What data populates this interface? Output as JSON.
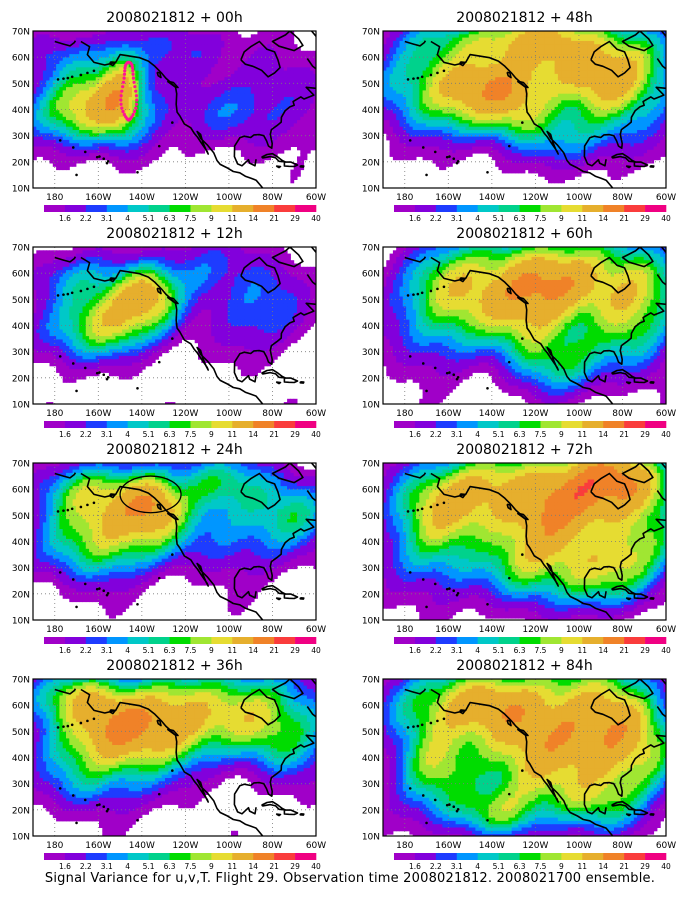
{
  "caption": "Signal Variance for u,v,T. Flight 29. Observation time 2008021812. 2008021700 ensemble.",
  "lat_labels": [
    "10N",
    "20N",
    "30N",
    "40N",
    "50N",
    "60N",
    "70N"
  ],
  "lon_labels": [
    "180",
    "160W",
    "140W",
    "120W",
    "100W",
    "80W",
    "60W"
  ],
  "colorbar": {
    "labels": [
      "1.6",
      "2.2",
      "3.1",
      "4",
      "5.1",
      "6.3",
      "7.5",
      "9",
      "11",
      "14",
      "21",
      "29",
      "40"
    ],
    "colors": [
      "#a000c8",
      "#8200dc",
      "#1e3cff",
      "#0096ff",
      "#00c8c8",
      "#00d28c",
      "#00dc00",
      "#a0e632",
      "#e6dc32",
      "#e6af2d",
      "#f08228",
      "#fa3c3c",
      "#f00082"
    ]
  },
  "chart_data": [
    {
      "type": "heatmap",
      "title": "2008021812 + 00h",
      "blobs": [
        {
          "lon": -160,
          "lat": 42,
          "slon": 16,
          "slat": 9,
          "a": 11
        },
        {
          "lon": -150,
          "lat": 47,
          "slon": 6,
          "slat": 10,
          "a": 9
        },
        {
          "lon": -170,
          "lat": 60,
          "slon": 15,
          "slat": 6,
          "a": 2
        },
        {
          "lon": -118,
          "lat": 63,
          "slon": 18,
          "slat": 7,
          "a": 1.8
        },
        {
          "lon": -100,
          "lat": 38,
          "slon": 16,
          "slat": 8,
          "a": 1.8
        },
        {
          "lon": -75,
          "lat": 45,
          "slon": 14,
          "slat": 10,
          "a": 1.7
        },
        {
          "lon": -178,
          "lat": 38,
          "slon": 14,
          "slat": 6,
          "a": 2.5
        }
      ],
      "marker": {
        "type": "dotted-loop",
        "lon": -146,
        "lat": 47,
        "rlon": 4,
        "rlat": 11
      }
    },
    {
      "type": "heatmap",
      "title": "2008021812 + 48h",
      "blobs": [
        {
          "lon": -150,
          "lat": 48,
          "slon": 16,
          "slat": 10,
          "a": 14
        },
        {
          "lon": -128,
          "lat": 45,
          "slon": 10,
          "slat": 9,
          "a": 10
        },
        {
          "lon": -105,
          "lat": 58,
          "slon": 20,
          "slat": 10,
          "a": 12
        },
        {
          "lon": -80,
          "lat": 52,
          "slon": 15,
          "slat": 10,
          "a": 10
        },
        {
          "lon": -100,
          "lat": 32,
          "slon": 18,
          "slat": 8,
          "a": 4
        },
        {
          "lon": -175,
          "lat": 50,
          "slon": 12,
          "slat": 10,
          "a": 4
        },
        {
          "lon": -130,
          "lat": 67,
          "slon": 25,
          "slat": 5,
          "a": 8
        }
      ]
    },
    {
      "type": "heatmap",
      "title": "2008021812 + 12h",
      "blobs": [
        {
          "lon": -150,
          "lat": 45,
          "slon": 14,
          "slat": 8,
          "a": 13
        },
        {
          "lon": -138,
          "lat": 52,
          "slon": 8,
          "slat": 6,
          "a": 9
        },
        {
          "lon": -165,
          "lat": 58,
          "slon": 14,
          "slat": 6,
          "a": 3
        },
        {
          "lon": -110,
          "lat": 60,
          "slon": 18,
          "slat": 8,
          "a": 2.5
        },
        {
          "lon": -85,
          "lat": 45,
          "slon": 14,
          "slat": 10,
          "a": 2.5
        },
        {
          "lon": -172,
          "lat": 36,
          "slon": 14,
          "slat": 7,
          "a": 3
        }
      ]
    },
    {
      "type": "heatmap",
      "title": "2008021812 + 60h",
      "blobs": [
        {
          "lon": -145,
          "lat": 55,
          "slon": 18,
          "slat": 10,
          "a": 13
        },
        {
          "lon": -120,
          "lat": 45,
          "slon": 12,
          "slat": 10,
          "a": 11
        },
        {
          "lon": -100,
          "lat": 58,
          "slon": 22,
          "slat": 9,
          "a": 14
        },
        {
          "lon": -75,
          "lat": 45,
          "slon": 12,
          "slat": 12,
          "a": 8
        },
        {
          "lon": -165,
          "lat": 40,
          "slon": 14,
          "slat": 10,
          "a": 4
        },
        {
          "lon": -108,
          "lat": 28,
          "slon": 14,
          "slat": 8,
          "a": 6
        }
      ]
    },
    {
      "type": "heatmap",
      "title": "2008021812 + 24h",
      "blobs": [
        {
          "lon": -150,
          "lat": 48,
          "slon": 16,
          "slat": 9,
          "a": 16
        },
        {
          "lon": -135,
          "lat": 55,
          "slon": 8,
          "slat": 6,
          "a": 12
        },
        {
          "lon": -170,
          "lat": 60,
          "slon": 12,
          "slat": 6,
          "a": 5
        },
        {
          "lon": -110,
          "lat": 62,
          "slon": 20,
          "slat": 7,
          "a": 5
        },
        {
          "lon": -95,
          "lat": 45,
          "slon": 18,
          "slat": 10,
          "a": 3.5
        },
        {
          "lon": -70,
          "lat": 52,
          "slon": 12,
          "slat": 8,
          "a": 4
        },
        {
          "lon": -165,
          "lat": 35,
          "slon": 16,
          "slat": 8,
          "a": 3
        }
      ],
      "marker": {
        "type": "ellipse",
        "lon": -136,
        "lat": 58,
        "rlon": 14,
        "rlat": 7
      }
    },
    {
      "type": "heatmap",
      "title": "2008021812 + 72h",
      "blobs": [
        {
          "lon": -150,
          "lat": 57,
          "slon": 18,
          "slat": 9,
          "a": 14
        },
        {
          "lon": -110,
          "lat": 55,
          "slon": 18,
          "slat": 12,
          "a": 15
        },
        {
          "lon": -85,
          "lat": 62,
          "slon": 16,
          "slat": 8,
          "a": 20
        },
        {
          "lon": -120,
          "lat": 35,
          "slon": 14,
          "slat": 10,
          "a": 9
        },
        {
          "lon": -165,
          "lat": 40,
          "slon": 14,
          "slat": 12,
          "a": 6
        },
        {
          "lon": -95,
          "lat": 28,
          "slon": 14,
          "slat": 8,
          "a": 7
        },
        {
          "lon": -75,
          "lat": 40,
          "slon": 12,
          "slat": 10,
          "a": 9
        }
      ]
    },
    {
      "type": "heatmap",
      "title": "2008021812 + 36h",
      "blobs": [
        {
          "lon": -150,
          "lat": 50,
          "slon": 18,
          "slat": 10,
          "a": 18
        },
        {
          "lon": -125,
          "lat": 55,
          "slon": 12,
          "slat": 8,
          "a": 11
        },
        {
          "lon": -170,
          "lat": 62,
          "slon": 12,
          "slat": 6,
          "a": 9
        },
        {
          "lon": -100,
          "lat": 58,
          "slon": 20,
          "slat": 10,
          "a": 8
        },
        {
          "lon": -75,
          "lat": 50,
          "slon": 14,
          "slat": 10,
          "a": 6
        },
        {
          "lon": -160,
          "lat": 32,
          "slon": 16,
          "slat": 8,
          "a": 3
        }
      ]
    },
    {
      "type": "heatmap",
      "title": "2008021812 + 84h",
      "blobs": [
        {
          "lon": -150,
          "lat": 60,
          "slon": 18,
          "slat": 8,
          "a": 15
        },
        {
          "lon": -100,
          "lat": 55,
          "slon": 20,
          "slat": 12,
          "a": 17
        },
        {
          "lon": -125,
          "lat": 40,
          "slon": 14,
          "slat": 12,
          "a": 11
        },
        {
          "lon": -165,
          "lat": 38,
          "slon": 12,
          "slat": 12,
          "a": 8
        },
        {
          "lon": -78,
          "lat": 42,
          "slon": 12,
          "slat": 10,
          "a": 12
        },
        {
          "lon": -95,
          "lat": 25,
          "slon": 14,
          "slat": 8,
          "a": 8
        },
        {
          "lon": -140,
          "lat": 20,
          "slon": 14,
          "slat": 6,
          "a": 6
        }
      ]
    }
  ]
}
